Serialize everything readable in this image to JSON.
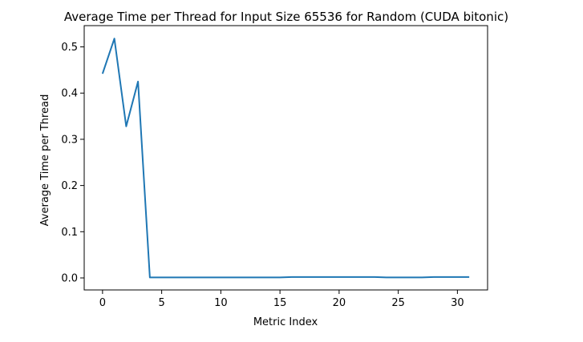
{
  "chart_data": {
    "type": "line",
    "title": "Average Time per Thread for Input Size 65536 for Random (CUDA bitonic)",
    "xlabel": "Metric Index",
    "ylabel": "Average Time per Thread",
    "xlim": [
      -1.55,
      32.55
    ],
    "ylim": [
      -0.026,
      0.546
    ],
    "xticks": [
      0,
      5,
      10,
      15,
      20,
      25,
      30
    ],
    "yticks": [
      0.0,
      0.1,
      0.2,
      0.3,
      0.4,
      0.5
    ],
    "xtick_labels": [
      "0",
      "5",
      "10",
      "15",
      "20",
      "25",
      "30"
    ],
    "ytick_labels": [
      "0.0",
      "0.1",
      "0.2",
      "0.3",
      "0.4",
      "0.5"
    ],
    "grid": false,
    "series": [
      {
        "color": "#1f77b4",
        "x": [
          0,
          1,
          2,
          3,
          4,
          5,
          6,
          7,
          8,
          9,
          10,
          11,
          12,
          13,
          14,
          15,
          16,
          17,
          18,
          19,
          20,
          21,
          22,
          23,
          24,
          25,
          26,
          27,
          28,
          29,
          30,
          31
        ],
        "y": [
          0.442,
          0.518,
          0.328,
          0.425,
          0.001,
          0.001,
          0.001,
          0.001,
          0.001,
          0.001,
          0.001,
          0.001,
          0.001,
          0.001,
          0.001,
          0.001,
          0.002,
          0.002,
          0.002,
          0.002,
          0.002,
          0.002,
          0.002,
          0.002,
          0.001,
          0.001,
          0.001,
          0.001,
          0.002,
          0.002,
          0.002,
          0.002
        ]
      }
    ]
  }
}
